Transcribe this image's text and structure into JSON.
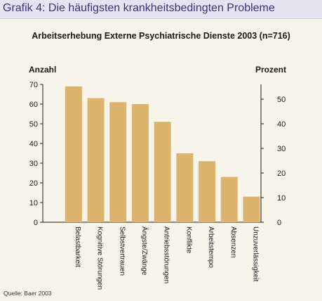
{
  "figure": {
    "title": "Grafik 4: Die häufigsten krankheitsbedingten Probleme",
    "source": "Quelle: Baer 2003"
  },
  "colors": {
    "bar": "#dcb46e",
    "title": "#3b3278",
    "background": "#f7f4ea",
    "title_bar": "#e6e4f0",
    "axis": "#1a1a1a"
  },
  "chart_data": {
    "type": "bar",
    "title": "Arbeitserhebung Externe Psychiatrische Dienste 2003 (n=716)",
    "ylabel": "Anzahl",
    "ylabel_right": "Prozent",
    "categories": [
      "Belastbarkeit",
      "Kognitive Störungen",
      "Selbstvertrauen",
      "Ängste/Zwänge",
      "Antriebsstörungen",
      "Konflikte",
      "Arbeitstempo",
      "Absenzen",
      "Unzuverlässigkeit"
    ],
    "values": [
      69,
      63,
      61,
      60,
      51,
      35,
      31,
      23,
      13
    ],
    "ylim": [
      0,
      70
    ],
    "yticks": [
      0,
      10,
      20,
      30,
      40,
      50,
      60,
      70
    ],
    "ylim_right": [
      0,
      56
    ],
    "yticks_right": [
      0,
      10,
      20,
      30,
      40,
      50
    ],
    "grid": false,
    "legend": "none"
  }
}
